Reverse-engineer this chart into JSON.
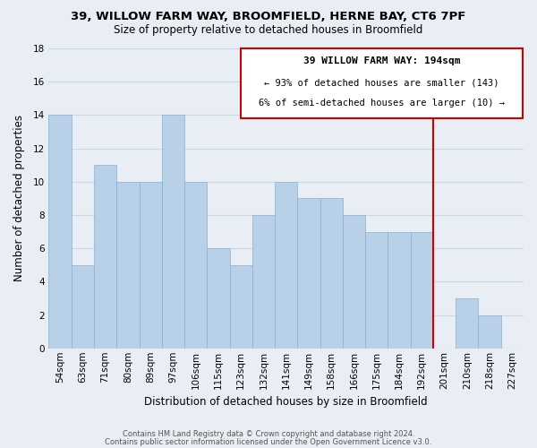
{
  "title1": "39, WILLOW FARM WAY, BROOMFIELD, HERNE BAY, CT6 7PF",
  "title2": "Size of property relative to detached houses in Broomfield",
  "xlabel": "Distribution of detached houses by size in Broomfield",
  "ylabel": "Number of detached properties",
  "categories": [
    "54sqm",
    "63sqm",
    "71sqm",
    "80sqm",
    "89sqm",
    "97sqm",
    "106sqm",
    "115sqm",
    "123sqm",
    "132sqm",
    "141sqm",
    "149sqm",
    "158sqm",
    "166sqm",
    "175sqm",
    "184sqm",
    "192sqm",
    "201sqm",
    "210sqm",
    "218sqm",
    "227sqm"
  ],
  "values": [
    14,
    5,
    11,
    10,
    10,
    14,
    10,
    6,
    5,
    8,
    10,
    9,
    9,
    8,
    7,
    7,
    7,
    0,
    3,
    2,
    0
  ],
  "bar_color": "#b8d0e8",
  "bar_edge_color": "#8ab0d0",
  "ylim": [
    0,
    18
  ],
  "yticks": [
    0,
    2,
    4,
    6,
    8,
    10,
    12,
    14,
    16,
    18
  ],
  "ref_line_color": "#cc0000",
  "annotation_box_title": "39 WILLOW FARM WAY: 194sqm",
  "annotation_line1": "← 93% of detached houses are smaller (143)",
  "annotation_line2": "6% of semi-detached houses are larger (10) →",
  "footer1": "Contains HM Land Registry data © Crown copyright and database right 2024.",
  "footer2": "Contains public sector information licensed under the Open Government Licence v3.0.",
  "background_color": "#e8eef4",
  "grid_color": "#c8d8e8",
  "title_fontsize": 9.5,
  "subtitle_fontsize": 8.5,
  "axis_label_fontsize": 8.5,
  "tick_fontsize": 7.5,
  "annot_fontsize": 8.0,
  "footer_fontsize": 6.0
}
